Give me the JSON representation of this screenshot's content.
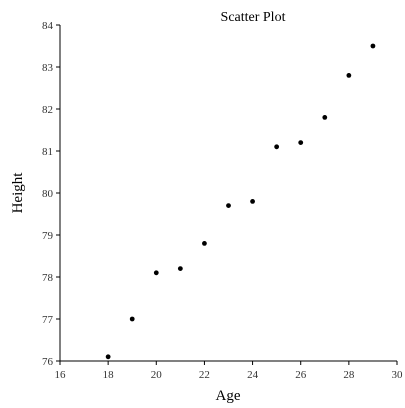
{
  "chart_data": {
    "type": "scatter",
    "title": "Scatter Plot",
    "xlabel": "Age",
    "ylabel": "Height",
    "xlim": [
      16,
      30
    ],
    "ylim": [
      76,
      84
    ],
    "xticks": [
      16,
      18,
      20,
      22,
      24,
      26,
      28,
      30
    ],
    "yticks": [
      76,
      77,
      78,
      79,
      80,
      81,
      82,
      83,
      84
    ],
    "grid": false,
    "series": [
      {
        "points": [
          {
            "x": 18,
            "y": 76.1
          },
          {
            "x": 19,
            "y": 77.0
          },
          {
            "x": 20,
            "y": 78.1
          },
          {
            "x": 21,
            "y": 78.2
          },
          {
            "x": 22,
            "y": 78.8
          },
          {
            "x": 23,
            "y": 79.7
          },
          {
            "x": 24,
            "y": 79.8
          },
          {
            "x": 25,
            "y": 81.1
          },
          {
            "x": 26,
            "y": 81.2
          },
          {
            "x": 27,
            "y": 81.8
          },
          {
            "x": 28,
            "y": 82.8
          },
          {
            "x": 29,
            "y": 83.5
          }
        ]
      }
    ]
  }
}
